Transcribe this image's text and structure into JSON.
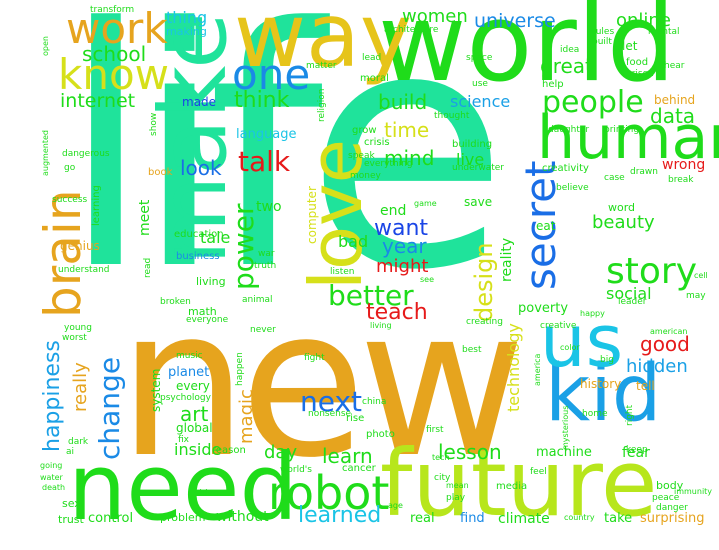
{
  "palette": {
    "teal": "#1fe39b",
    "orange": "#e6a41e",
    "green": "#1fdc1a",
    "lime": "#b7e61c",
    "blue": "#1a8ae6",
    "yellowgreen": "#d6e01a",
    "red": "#e61a1a",
    "cyan": "#1ac4e6",
    "gold": "#e6d21a",
    "darkblue": "#1a45e6",
    "olive": "#9ad11a"
  },
  "words": [
    {
      "t": "life",
      "c": "#1fe39b"
    },
    {
      "t": "new",
      "c": "#e6a41e"
    },
    {
      "t": "world",
      "c": "#1fdc1a"
    },
    {
      "t": "make",
      "c": "#1fe39b"
    },
    {
      "t": "way",
      "c": "#e6c41a"
    },
    {
      "t": "love",
      "c": "#d6e01a"
    },
    {
      "t": "future",
      "c": "#b7e61c"
    },
    {
      "t": "need",
      "c": "#1fdc1a"
    },
    {
      "t": "kid",
      "c": "#1aa0e6"
    },
    {
      "t": "us",
      "c": "#1ac4e6"
    },
    {
      "t": "human",
      "c": "#1fdc1a"
    },
    {
      "t": "brain",
      "c": "#e6a41e"
    },
    {
      "t": "robot",
      "c": "#1fdc1a"
    },
    {
      "t": "work",
      "c": "#e6a41e"
    },
    {
      "t": "know",
      "c": "#d6e01a"
    },
    {
      "t": "one",
      "c": "#1a8ae6"
    },
    {
      "t": "secret",
      "c": "#1a6ee6"
    },
    {
      "t": "story",
      "c": "#1fdc1a"
    },
    {
      "t": "people",
      "c": "#1fdc1a"
    },
    {
      "t": "power",
      "c": "#1fdc1a"
    },
    {
      "t": "change",
      "c": "#1a8ae6"
    },
    {
      "t": "better",
      "c": "#1fdc1a"
    },
    {
      "t": "talk",
      "c": "#e61a1a"
    },
    {
      "t": "design",
      "c": "#d6e01a"
    },
    {
      "t": "next",
      "c": "#1a6ee6"
    },
    {
      "t": "happiness",
      "c": "#1aa0e6"
    },
    {
      "t": "learned",
      "c": "#1ac4e6"
    },
    {
      "t": "teach",
      "c": "#e61a1a"
    },
    {
      "t": "want",
      "c": "#1a45e6"
    },
    {
      "t": "think",
      "c": "#1fdc1a"
    },
    {
      "t": "school",
      "c": "#1fdc1a"
    },
    {
      "t": "universe",
      "c": "#1a8ae6"
    },
    {
      "t": "great",
      "c": "#1fdc1a"
    },
    {
      "t": "build",
      "c": "#1fdc1a"
    },
    {
      "t": "mind",
      "c": "#1fdc1a"
    },
    {
      "t": "time",
      "c": "#d6e01a"
    },
    {
      "t": "look",
      "c": "#1a6ee6"
    },
    {
      "t": "internet",
      "c": "#1fdc1a"
    },
    {
      "t": "online",
      "c": "#1fdc1a"
    },
    {
      "t": "women",
      "c": "#1fdc1a"
    },
    {
      "t": "science",
      "c": "#1aa0e6"
    },
    {
      "t": "data",
      "c": "#1fdc1a"
    },
    {
      "t": "good",
      "c": "#e61a1a"
    },
    {
      "t": "hidden",
      "c": "#1aa0e6"
    },
    {
      "t": "learn",
      "c": "#1fdc1a"
    },
    {
      "t": "lesson",
      "c": "#1fdc1a"
    },
    {
      "t": "really",
      "c": "#e6a41e"
    },
    {
      "t": "magic",
      "c": "#e6a41e"
    },
    {
      "t": "art",
      "c": "#1fdc1a"
    },
    {
      "t": "day",
      "c": "#1fdc1a"
    },
    {
      "t": "inside",
      "c": "#1fdc1a"
    },
    {
      "t": "year",
      "c": "#1a8ae6"
    },
    {
      "t": "might",
      "c": "#e61a1a"
    },
    {
      "t": "beauty",
      "c": "#1fdc1a"
    },
    {
      "t": "social",
      "c": "#1fdc1a"
    },
    {
      "t": "technology",
      "c": "#d6e01a"
    },
    {
      "t": "reality",
      "c": "#1fdc1a"
    },
    {
      "t": "live",
      "c": "#1fdc1a"
    },
    {
      "t": "bad",
      "c": "#1fdc1a"
    },
    {
      "t": "end",
      "c": "#1fdc1a"
    },
    {
      "t": "meet",
      "c": "#1fdc1a"
    },
    {
      "t": "tale",
      "c": "#1fdc1a"
    },
    {
      "t": "thing",
      "c": "#1ac4e6"
    },
    {
      "t": "language",
      "c": "#1ac4e6"
    },
    {
      "t": "making",
      "c": "#1ac4e6"
    },
    {
      "t": "made",
      "c": "#1a45e6"
    },
    {
      "t": "let",
      "c": "#1fdc1a"
    },
    {
      "t": "behind",
      "c": "#e6a41e"
    },
    {
      "t": "wrong",
      "c": "#e61a1a"
    },
    {
      "t": "word",
      "c": "#1fdc1a"
    },
    {
      "t": "machine",
      "c": "#1fdc1a"
    },
    {
      "t": "fear",
      "c": "#1fdc1a"
    },
    {
      "t": "poverty",
      "c": "#1fdc1a"
    },
    {
      "t": "planet",
      "c": "#1a8ae6"
    },
    {
      "t": "system",
      "c": "#1fdc1a"
    },
    {
      "t": "global",
      "c": "#1fdc1a"
    },
    {
      "t": "every",
      "c": "#1fdc1a"
    },
    {
      "t": "education",
      "c": "#1fdc1a"
    },
    {
      "t": "genius",
      "c": "#e6a41e"
    },
    {
      "t": "two",
      "c": "#1fdc1a"
    },
    {
      "t": "save",
      "c": "#1fdc1a"
    },
    {
      "t": "eat",
      "c": "#1fdc1a"
    },
    {
      "t": "history",
      "c": "#e6a41e"
    },
    {
      "t": "tell",
      "c": "#e6a41e"
    },
    {
      "t": "climate",
      "c": "#1fdc1a"
    },
    {
      "t": "find",
      "c": "#1a8ae6"
    },
    {
      "t": "real",
      "c": "#1fdc1a"
    },
    {
      "t": "take",
      "c": "#1fdc1a"
    },
    {
      "t": "surprising",
      "c": "#e6a41e"
    },
    {
      "t": "control",
      "c": "#1fdc1a"
    },
    {
      "t": "problem",
      "c": "#1fdc1a"
    },
    {
      "t": "without",
      "c": "#1fdc1a"
    },
    {
      "t": "body",
      "c": "#1fdc1a"
    },
    {
      "t": "sex",
      "c": "#1fdc1a"
    },
    {
      "t": "trust",
      "c": "#1fdc1a"
    },
    {
      "t": "math",
      "c": "#1fdc1a"
    },
    {
      "t": "living",
      "c": "#1fdc1a"
    },
    {
      "t": "business",
      "c": "#1a8ae6"
    },
    {
      "t": "book",
      "c": "#e6a41e"
    },
    {
      "t": "learning",
      "c": "#1fdc1a"
    },
    {
      "t": "computer",
      "c": "#d6e01a"
    },
    {
      "t": "grow",
      "c": "#1fdc1a"
    },
    {
      "t": "crisis",
      "c": "#1fdc1a"
    },
    {
      "t": "money",
      "c": "#1fdc1a"
    },
    {
      "t": "rise",
      "c": "#1fdc1a"
    },
    {
      "t": "china",
      "c": "#1fdc1a"
    },
    {
      "t": "photo",
      "c": "#1fdc1a"
    },
    {
      "t": "cancer",
      "c": "#1fdc1a"
    },
    {
      "t": "reason",
      "c": "#1fdc1a"
    },
    {
      "t": "media",
      "c": "#1fdc1a"
    },
    {
      "t": "city",
      "c": "#1fdc1a"
    },
    {
      "t": "play",
      "c": "#1fdc1a"
    },
    {
      "t": "help",
      "c": "#1fdc1a"
    },
    {
      "t": "use",
      "c": "#1fdc1a"
    },
    {
      "t": "food",
      "c": "#1fdc1a"
    },
    {
      "t": "rules",
      "c": "#1fdc1a"
    },
    {
      "t": "idea",
      "c": "#1fdc1a"
    },
    {
      "t": "built",
      "c": "#1fdc1a"
    },
    {
      "t": "mental",
      "c": "#1fdc1a"
    },
    {
      "t": "prison",
      "c": "#1fdc1a"
    },
    {
      "t": "hear",
      "c": "#1fdc1a"
    },
    {
      "t": "space",
      "c": "#1fdc1a"
    },
    {
      "t": "moral",
      "c": "#1fdc1a"
    },
    {
      "t": "matter",
      "c": "#1fdc1a"
    },
    {
      "t": "architecture",
      "c": "#1fdc1a"
    },
    {
      "t": "transform",
      "c": "#1fdc1a"
    },
    {
      "t": "open",
      "c": "#1fdc1a"
    },
    {
      "t": "lead",
      "c": "#1fdc1a"
    },
    {
      "t": "religion",
      "c": "#1fdc1a"
    },
    {
      "t": "thought",
      "c": "#1fdc1a"
    },
    {
      "t": "daughter",
      "c": "#1fdc1a"
    },
    {
      "t": "printing",
      "c": "#1fdc1a"
    },
    {
      "t": "drawn",
      "c": "#1fdc1a"
    },
    {
      "t": "break",
      "c": "#1fdc1a"
    },
    {
      "t": "creativity",
      "c": "#1fdc1a"
    },
    {
      "t": "case",
      "c": "#1fdc1a"
    },
    {
      "t": "believe",
      "c": "#1fdc1a"
    },
    {
      "t": "building",
      "c": "#1fdc1a"
    },
    {
      "t": "underwater",
      "c": "#1fdc1a"
    },
    {
      "t": "everything",
      "c": "#1fdc1a"
    },
    {
      "t": "speak",
      "c": "#1fdc1a"
    },
    {
      "t": "show",
      "c": "#1fdc1a"
    },
    {
      "t": "dangerous",
      "c": "#1fdc1a"
    },
    {
      "t": "augmented",
      "c": "#1fdc1a"
    },
    {
      "t": "go",
      "c": "#1fdc1a"
    },
    {
      "t": "success",
      "c": "#1fdc1a"
    },
    {
      "t": "understand",
      "c": "#1fdc1a"
    },
    {
      "t": "read",
      "c": "#1fdc1a"
    },
    {
      "t": "war",
      "c": "#1fdc1a"
    },
    {
      "t": "truth",
      "c": "#1fdc1a"
    },
    {
      "t": "listen",
      "c": "#1fdc1a"
    },
    {
      "t": "animal",
      "c": "#1fdc1a"
    },
    {
      "t": "broken",
      "c": "#1fdc1a"
    },
    {
      "t": "everyone",
      "c": "#1fdc1a"
    },
    {
      "t": "young",
      "c": "#1fdc1a"
    },
    {
      "t": "worst",
      "c": "#1fdc1a"
    },
    {
      "t": "music",
      "c": "#1fdc1a"
    },
    {
      "t": "psychology",
      "c": "#1fdc1a"
    },
    {
      "t": "happen",
      "c": "#1fdc1a"
    },
    {
      "t": "fix",
      "c": "#1fdc1a"
    },
    {
      "t": "dark",
      "c": "#1fdc1a"
    },
    {
      "t": "ai",
      "c": "#1fdc1a"
    },
    {
      "t": "going",
      "c": "#1fdc1a"
    },
    {
      "t": "water",
      "c": "#1fdc1a"
    },
    {
      "t": "death",
      "c": "#1fdc1a"
    },
    {
      "t": "video",
      "c": "#1fdc1a"
    },
    {
      "t": "world's",
      "c": "#1fdc1a"
    },
    {
      "t": "first",
      "c": "#1fdc1a"
    },
    {
      "t": "nonsense",
      "c": "#1fdc1a"
    },
    {
      "t": "fight",
      "c": "#1fdc1a"
    },
    {
      "t": "never",
      "c": "#1fdc1a"
    },
    {
      "t": "creating",
      "c": "#1fdc1a"
    },
    {
      "t": "creative",
      "c": "#1fdc1a"
    },
    {
      "t": "living",
      "c": "#1fdc1a"
    },
    {
      "t": "best",
      "c": "#1fdc1a"
    },
    {
      "t": "america",
      "c": "#1fdc1a"
    },
    {
      "t": "big",
      "c": "#1fdc1a"
    },
    {
      "t": "color",
      "c": "#1fdc1a"
    },
    {
      "t": "happy",
      "c": "#1fdc1a"
    },
    {
      "t": "american",
      "c": "#1fdc1a"
    },
    {
      "t": "leader",
      "c": "#1fdc1a"
    },
    {
      "t": "may",
      "c": "#1fdc1a"
    },
    {
      "t": "right",
      "c": "#1fdc1a"
    },
    {
      "t": "home",
      "c": "#1fdc1a"
    },
    {
      "t": "keep",
      "c": "#1fdc1a"
    },
    {
      "t": "feel",
      "c": "#1fdc1a"
    },
    {
      "t": "peace",
      "c": "#1fdc1a"
    },
    {
      "t": "danger",
      "c": "#1fdc1a"
    },
    {
      "t": "country",
      "c": "#1fdc1a"
    },
    {
      "t": "immunity",
      "c": "#1fdc1a"
    },
    {
      "t": "mean",
      "c": "#1fdc1a"
    },
    {
      "t": "tech",
      "c": "#1fdc1a"
    },
    {
      "t": "age",
      "c": "#1fdc1a"
    },
    {
      "t": "game",
      "c": "#1fdc1a"
    },
    {
      "t": "see",
      "c": "#1fdc1a"
    },
    {
      "t": "mysterious",
      "c": "#1fdc1a"
    },
    {
      "t": "cell",
      "c": "#1fdc1a"
    }
  ]
}
